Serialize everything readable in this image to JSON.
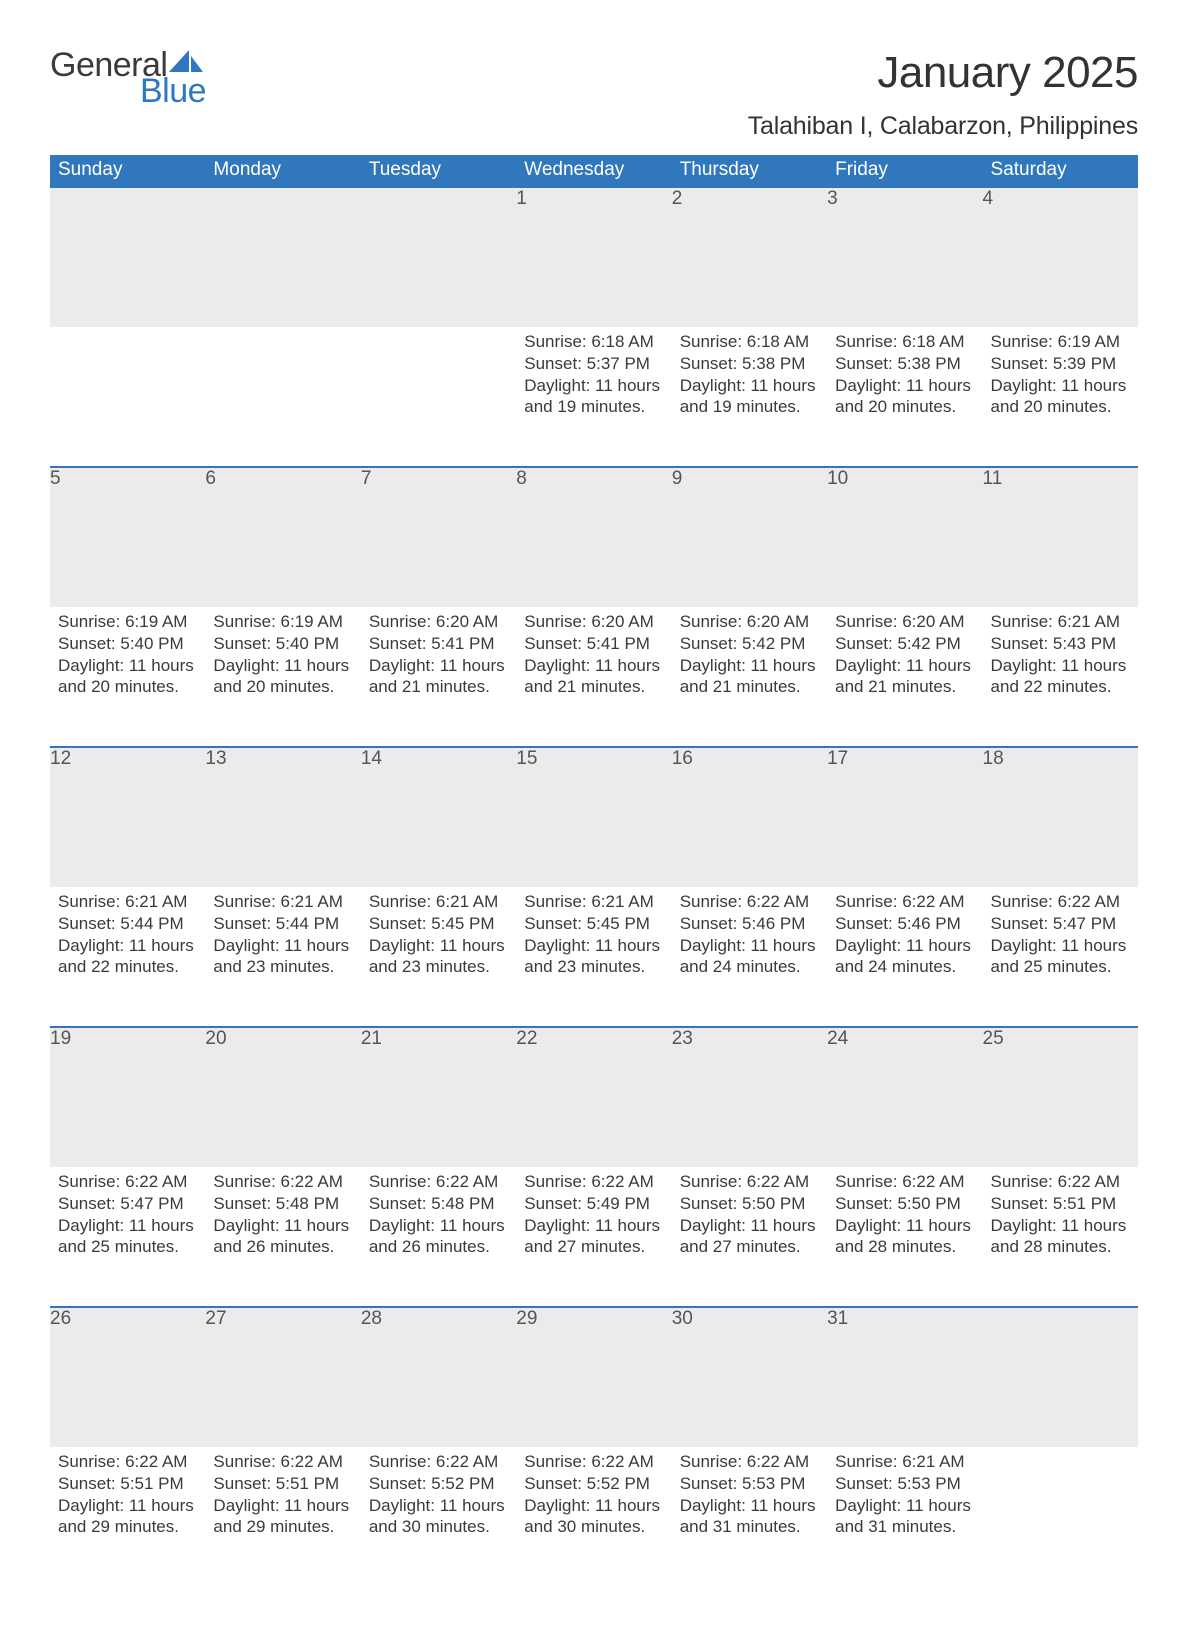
{
  "brand": {
    "word1": "General",
    "word2": "Blue",
    "accent_color": "#2f78bf"
  },
  "title": "January 2025",
  "location": "Talahiban I, Calabarzon, Philippines",
  "colors": {
    "header_bg": "#3077bb",
    "header_text": "#ffffff",
    "daynum_bg": "#ebebeb",
    "daynum_border": "#3077bb",
    "body_text": "#3a3a3a",
    "page_bg": "#ffffff"
  },
  "fonts": {
    "title_size": 44,
    "location_size": 25,
    "th_size": 19,
    "daynum_size": 19,
    "cell_size": 17
  },
  "weekdays": [
    "Sunday",
    "Monday",
    "Tuesday",
    "Wednesday",
    "Thursday",
    "Friday",
    "Saturday"
  ],
  "labels": {
    "sunrise": "Sunrise:",
    "sunset": "Sunset:",
    "daylight": "Daylight:",
    "hours_word": "hours",
    "and_word": "and",
    "minutes_word": "minutes."
  },
  "start_day_index": 3,
  "days": [
    {
      "n": 1,
      "sunrise": "6:18 AM",
      "sunset": "5:37 PM",
      "dl_h": 11,
      "dl_m": 19
    },
    {
      "n": 2,
      "sunrise": "6:18 AM",
      "sunset": "5:38 PM",
      "dl_h": 11,
      "dl_m": 19
    },
    {
      "n": 3,
      "sunrise": "6:18 AM",
      "sunset": "5:38 PM",
      "dl_h": 11,
      "dl_m": 20
    },
    {
      "n": 4,
      "sunrise": "6:19 AM",
      "sunset": "5:39 PM",
      "dl_h": 11,
      "dl_m": 20
    },
    {
      "n": 5,
      "sunrise": "6:19 AM",
      "sunset": "5:40 PM",
      "dl_h": 11,
      "dl_m": 20
    },
    {
      "n": 6,
      "sunrise": "6:19 AM",
      "sunset": "5:40 PM",
      "dl_h": 11,
      "dl_m": 20
    },
    {
      "n": 7,
      "sunrise": "6:20 AM",
      "sunset": "5:41 PM",
      "dl_h": 11,
      "dl_m": 21
    },
    {
      "n": 8,
      "sunrise": "6:20 AM",
      "sunset": "5:41 PM",
      "dl_h": 11,
      "dl_m": 21
    },
    {
      "n": 9,
      "sunrise": "6:20 AM",
      "sunset": "5:42 PM",
      "dl_h": 11,
      "dl_m": 21
    },
    {
      "n": 10,
      "sunrise": "6:20 AM",
      "sunset": "5:42 PM",
      "dl_h": 11,
      "dl_m": 21
    },
    {
      "n": 11,
      "sunrise": "6:21 AM",
      "sunset": "5:43 PM",
      "dl_h": 11,
      "dl_m": 22
    },
    {
      "n": 12,
      "sunrise": "6:21 AM",
      "sunset": "5:44 PM",
      "dl_h": 11,
      "dl_m": 22
    },
    {
      "n": 13,
      "sunrise": "6:21 AM",
      "sunset": "5:44 PM",
      "dl_h": 11,
      "dl_m": 23
    },
    {
      "n": 14,
      "sunrise": "6:21 AM",
      "sunset": "5:45 PM",
      "dl_h": 11,
      "dl_m": 23
    },
    {
      "n": 15,
      "sunrise": "6:21 AM",
      "sunset": "5:45 PM",
      "dl_h": 11,
      "dl_m": 23
    },
    {
      "n": 16,
      "sunrise": "6:22 AM",
      "sunset": "5:46 PM",
      "dl_h": 11,
      "dl_m": 24
    },
    {
      "n": 17,
      "sunrise": "6:22 AM",
      "sunset": "5:46 PM",
      "dl_h": 11,
      "dl_m": 24
    },
    {
      "n": 18,
      "sunrise": "6:22 AM",
      "sunset": "5:47 PM",
      "dl_h": 11,
      "dl_m": 25
    },
    {
      "n": 19,
      "sunrise": "6:22 AM",
      "sunset": "5:47 PM",
      "dl_h": 11,
      "dl_m": 25
    },
    {
      "n": 20,
      "sunrise": "6:22 AM",
      "sunset": "5:48 PM",
      "dl_h": 11,
      "dl_m": 26
    },
    {
      "n": 21,
      "sunrise": "6:22 AM",
      "sunset": "5:48 PM",
      "dl_h": 11,
      "dl_m": 26
    },
    {
      "n": 22,
      "sunrise": "6:22 AM",
      "sunset": "5:49 PM",
      "dl_h": 11,
      "dl_m": 27
    },
    {
      "n": 23,
      "sunrise": "6:22 AM",
      "sunset": "5:50 PM",
      "dl_h": 11,
      "dl_m": 27
    },
    {
      "n": 24,
      "sunrise": "6:22 AM",
      "sunset": "5:50 PM",
      "dl_h": 11,
      "dl_m": 28
    },
    {
      "n": 25,
      "sunrise": "6:22 AM",
      "sunset": "5:51 PM",
      "dl_h": 11,
      "dl_m": 28
    },
    {
      "n": 26,
      "sunrise": "6:22 AM",
      "sunset": "5:51 PM",
      "dl_h": 11,
      "dl_m": 29
    },
    {
      "n": 27,
      "sunrise": "6:22 AM",
      "sunset": "5:51 PM",
      "dl_h": 11,
      "dl_m": 29
    },
    {
      "n": 28,
      "sunrise": "6:22 AM",
      "sunset": "5:52 PM",
      "dl_h": 11,
      "dl_m": 30
    },
    {
      "n": 29,
      "sunrise": "6:22 AM",
      "sunset": "5:52 PM",
      "dl_h": 11,
      "dl_m": 30
    },
    {
      "n": 30,
      "sunrise": "6:22 AM",
      "sunset": "5:53 PM",
      "dl_h": 11,
      "dl_m": 31
    },
    {
      "n": 31,
      "sunrise": "6:21 AM",
      "sunset": "5:53 PM",
      "dl_h": 11,
      "dl_m": 31
    }
  ]
}
